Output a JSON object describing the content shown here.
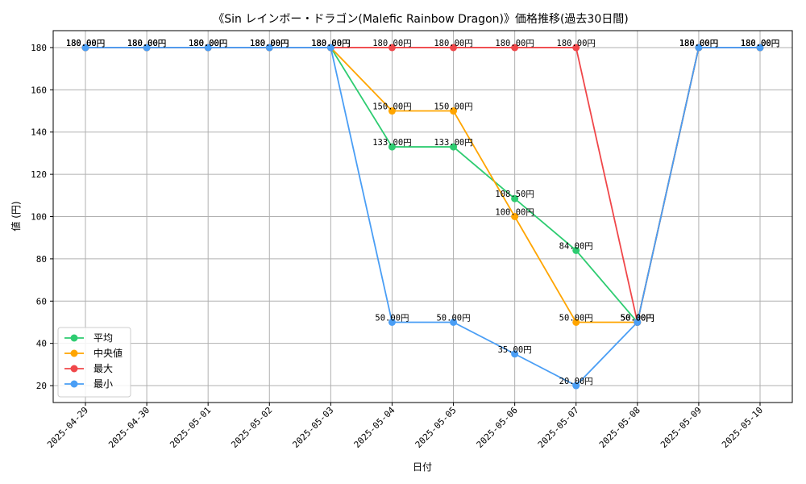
{
  "chart_data": {
    "type": "line",
    "title": "《Sin レインボー・ドラゴン(Malefic Rainbow Dragon)》価格推移(過去30日間)",
    "xlabel": "日付",
    "ylabel": "値 (円)",
    "categories": [
      "2025-04-29",
      "2025-04-30",
      "2025-05-01",
      "2025-05-02",
      "2025-05-03",
      "2025-05-04",
      "2025-05-05",
      "2025-05-06",
      "2025-05-07",
      "2025-05-08",
      "2025-05-09",
      "2025-05-10"
    ],
    "ylim": [
      12,
      188
    ],
    "yticks": [
      20,
      40,
      60,
      80,
      100,
      120,
      140,
      160,
      180
    ],
    "grid": true,
    "legend_position": "lower-left",
    "value_suffix": "円",
    "series": [
      {
        "name": "平均",
        "color": "#2ecc71",
        "values": [
          180,
          180,
          180,
          180,
          180,
          133,
          133,
          108.5,
          84,
          50,
          180,
          180
        ]
      },
      {
        "name": "中央値",
        "color": "#ffa500",
        "values": [
          180,
          180,
          180,
          180,
          180,
          150,
          150,
          100,
          50,
          50,
          180,
          180
        ]
      },
      {
        "name": "最大",
        "color": "#f0474a",
        "values": [
          180,
          180,
          180,
          180,
          180,
          180,
          180,
          180,
          180,
          50,
          180,
          180
        ]
      },
      {
        "name": "最小",
        "color": "#4a9ef5",
        "values": [
          180,
          180,
          180,
          180,
          180,
          50,
          50,
          35,
          20,
          50,
          180,
          180
        ]
      }
    ]
  }
}
